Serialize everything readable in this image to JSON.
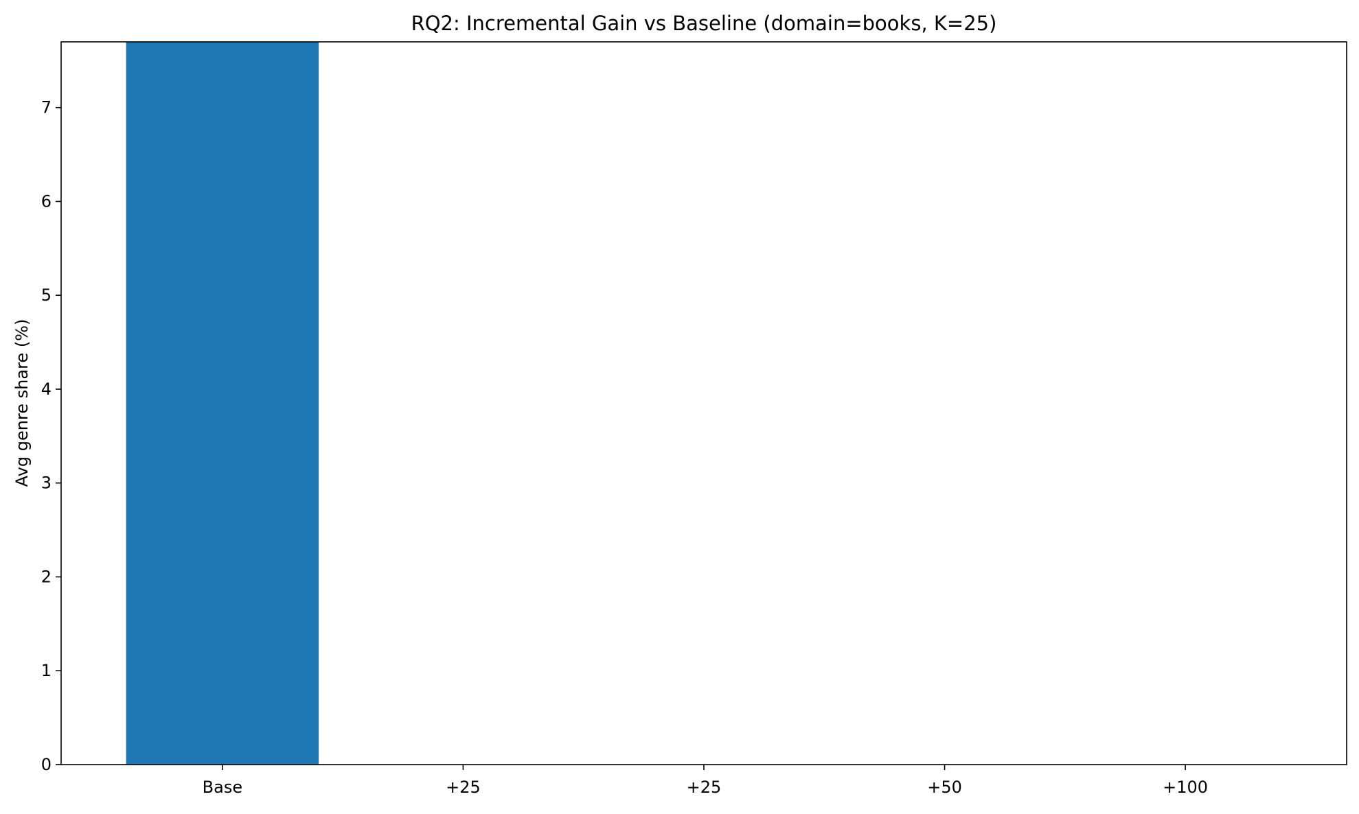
{
  "chart_data": {
    "type": "bar",
    "title": "RQ2: Incremental Gain vs Baseline (domain=books, K=25)",
    "xlabel": "",
    "ylabel": "Avg genre share (%)",
    "categories": [
      "Base",
      "+25",
      "+25",
      "+50",
      "+100"
    ],
    "values": [
      7.7,
      0,
      0,
      0,
      0
    ],
    "ylim": [
      0,
      7.7
    ],
    "yticks": [
      0,
      1,
      2,
      3,
      4,
      5,
      6,
      7
    ],
    "bar_color": "#1f77b4",
    "grid": false,
    "legend": "none"
  }
}
